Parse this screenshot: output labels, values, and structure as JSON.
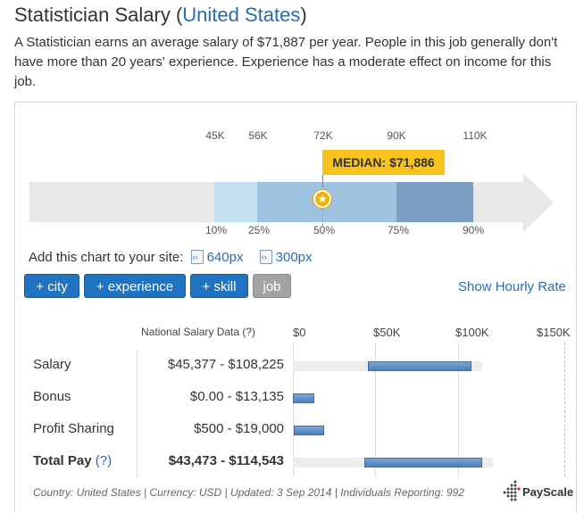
{
  "header": {
    "title_prefix": "Statistician Salary (",
    "title_location": "United States",
    "title_suffix": ")",
    "intro": "A Statistician earns an average salary of $71,887 per year. People in this job generally don't have more than 20 years' experience. Experience has a moderate effect on income for this job."
  },
  "percentile_chart": {
    "top_labels": [
      "45K",
      "56K",
      "72K",
      "90K",
      "110K"
    ],
    "bottom_labels": [
      "10%",
      "25%",
      "50%",
      "75%",
      "90%"
    ],
    "median_label": "MEDIAN: $71,886",
    "colors": {
      "p10_25": "#c4dff0",
      "p25_50": "#9ec3e1",
      "p50_75": "#9ec3e1",
      "p75_90": "#7a9fc2",
      "track": "#e8e8e8",
      "median": "#f8c31a"
    }
  },
  "embed": {
    "label": "Add this chart to your site:",
    "link_640": "640px",
    "link_300": "300px"
  },
  "filters": {
    "city": "+ city",
    "experience": "+ experience",
    "skill": "+ skill",
    "job": "job",
    "hourly": "Show Hourly Rate"
  },
  "national": {
    "heading": "National Salary Data (?)",
    "axis_ticks": [
      "$0",
      "$50K",
      "$100K",
      "$150K"
    ],
    "rows": [
      {
        "label": "Salary",
        "range": "$45,377 - $108,225",
        "low": 45377,
        "high": 108225
      },
      {
        "label": "Bonus",
        "range": "$0.00 - $13,135",
        "low": 0,
        "high": 13135
      },
      {
        "label": "Profit Sharing",
        "range": "$500 - $19,000",
        "low": 500,
        "high": 19000
      },
      {
        "label": "Total Pay",
        "help": "(?)",
        "range": "$43,473 - $114,543",
        "low": 43473,
        "high": 114543
      }
    ]
  },
  "footer": {
    "info": "Country: United States | Currency: USD | Updated: 3 Sep 2014 | Individuals Reporting: 992",
    "brand": "PayScale"
  }
}
